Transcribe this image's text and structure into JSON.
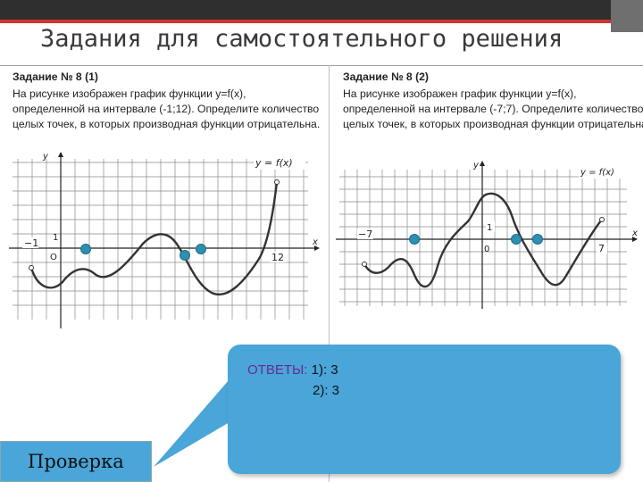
{
  "slide": {
    "title": "Задания для самостоятельного решения"
  },
  "task1": {
    "heading": "Задание № 8 (1)",
    "text": "На рисунке изображен график функции y=f(x), определенной на интервале (-1;12). Определите количество целых точек, в которых производная функции отрицательна.",
    "graph": {
      "legend": "y = f(x)",
      "axis_x": "x",
      "axis_y": "y",
      "label_minus1_x": "−1",
      "label_one_y": "1",
      "label_origin": "O",
      "label_twelve": "12"
    }
  },
  "task2": {
    "heading": "Задание № 8 (2)",
    "text": "На рисунке изображен график функции  y=f(x), определенной на интервале (-7;7). Определите количество целых точек, в которых производная функции отрицательна.",
    "graph": {
      "legend": "y = f(x)",
      "axis_x": "x",
      "axis_y": "y",
      "label_minus7": "−7",
      "label_one_y": "1",
      "label_origin": "0",
      "label_seven": "7"
    }
  },
  "answers": {
    "label": "ОТВЕТЫ:",
    "line1_value": " 1): 3",
    "line2": "2): 3"
  },
  "check_button": {
    "label": "Проверка"
  },
  "colors": {
    "accent_blue": "#4aa5d8",
    "marker_teal": "#2f8fb0",
    "title_red_bar": "#d23333",
    "answers_label": "#6b2a8a"
  }
}
